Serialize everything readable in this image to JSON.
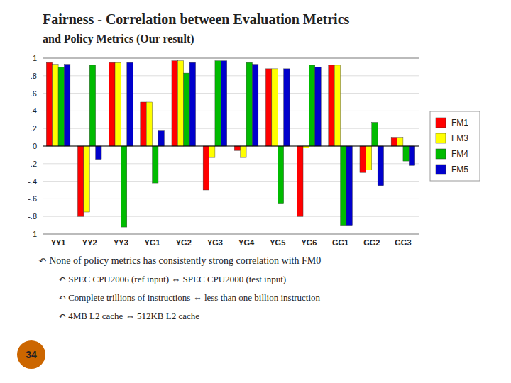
{
  "chart_data": {
    "type": "bar",
    "title": "Fairness - Correlation between Evaluation Metrics",
    "subtitle": "and Policy Metrics (Our result)",
    "categories": [
      "YY1",
      "YY2",
      "YY3",
      "YG1",
      "YG2",
      "YG3",
      "YG4",
      "YG5",
      "YG6",
      "GG1",
      "GG2",
      "GG3"
    ],
    "series": [
      {
        "name": "FM1",
        "color": "#FF0000",
        "values": [
          0.95,
          -0.8,
          0.95,
          0.5,
          0.97,
          -0.5,
          -0.05,
          0.88,
          -0.8,
          0.92,
          -0.3,
          0.1
        ]
      },
      {
        "name": "FM3",
        "color": "#FFFF00",
        "values": [
          0.93,
          -0.75,
          0.95,
          0.5,
          0.97,
          -0.13,
          -0.13,
          0.88,
          -0.02,
          0.92,
          -0.27,
          0.1
        ]
      },
      {
        "name": "FM4",
        "color": "#00BB00",
        "values": [
          0.9,
          0.92,
          -0.92,
          -0.42,
          0.83,
          0.97,
          0.95,
          -0.65,
          0.92,
          -0.9,
          0.27,
          -0.17
        ]
      },
      {
        "name": "FM5",
        "color": "#0000CC",
        "values": [
          0.93,
          -0.15,
          0.95,
          0.18,
          0.95,
          0.97,
          0.93,
          0.88,
          0.9,
          -0.9,
          -0.45,
          -0.22
        ]
      }
    ],
    "ylim": [
      -1.0,
      1.0
    ],
    "yticks": [
      -1,
      {
        "value": -0.8,
        "label": "-.8"
      },
      {
        "value": -0.6,
        "label": "-.6"
      },
      {
        "value": -0.4,
        "label": "-.4"
      },
      {
        "value": -0.2,
        "label": "-.2"
      },
      0,
      {
        "value": 0.2,
        "label": ".2"
      },
      {
        "value": 0.4,
        "label": ".4"
      },
      {
        "value": 0.6,
        "label": ".6"
      },
      {
        "value": 0.8,
        "label": ".8"
      },
      1
    ],
    "grid": true,
    "legend": "right",
    "annotations": [
      "↶ None of policy metrics has consistently strong correlation with FM0",
      "↶ SPEC CPU2006 (ref input) ⇔ SPEC CPU2000 (test input)",
      "↶ Complete trillions of instructions ⇔ less than one billion instruction",
      "↶ 4MB L2 cache ⇔ 512KB L2 cache",
      "34"
    ]
  }
}
